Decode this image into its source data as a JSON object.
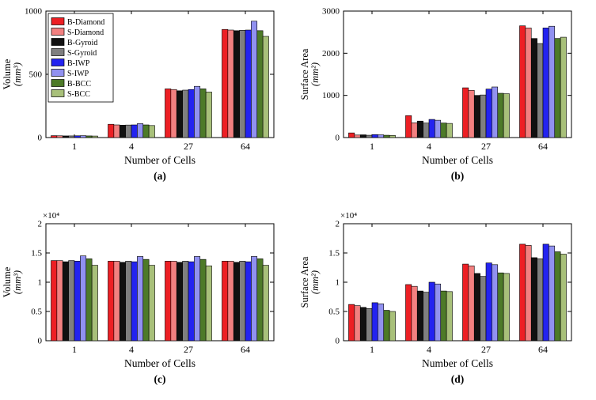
{
  "figure": {
    "description_labels": [
      "(a)",
      "(b)",
      "(c)",
      "(d)"
    ]
  },
  "legend": {
    "entries": [
      {
        "label": "B-Diamond",
        "color": "#ed1f24"
      },
      {
        "label": "S-Diamond",
        "color": "#f28080"
      },
      {
        "label": "B-Gyroid",
        "color": "#111111"
      },
      {
        "label": "S-Gyroid",
        "color": "#7f7f7f"
      },
      {
        "label": "B-IWP",
        "color": "#2323f0"
      },
      {
        "label": "S-IWP",
        "color": "#9191f0"
      },
      {
        "label": "B-BCC",
        "color": "#4d7a28"
      },
      {
        "label": "S-BCC",
        "color": "#a8c07a"
      }
    ]
  },
  "chart_data": [
    {
      "type": "bar",
      "caption": "(a)",
      "ylabel": [
        "Volume",
        "(mm³)"
      ],
      "xlabel": "Number of Cells",
      "categories": [
        "1",
        "4",
        "27",
        "64"
      ],
      "ymax": 1000,
      "yticks": [
        0,
        500,
        1000
      ],
      "ytick_labels": [
        "0",
        "500",
        "1000"
      ],
      "multiplier": "",
      "show_legend": true,
      "series": [
        {
          "name": "B-Diamond",
          "values": [
            15,
            105,
            385,
            855
          ]
        },
        {
          "name": "S-Diamond",
          "values": [
            14,
            100,
            380,
            850
          ]
        },
        {
          "name": "B-Gyroid",
          "values": [
            13,
            98,
            370,
            845
          ]
        },
        {
          "name": "S-Gyroid",
          "values": [
            13,
            99,
            375,
            848
          ]
        },
        {
          "name": "B-IWP",
          "values": [
            14,
            100,
            380,
            850
          ]
        },
        {
          "name": "S-IWP",
          "values": [
            15,
            110,
            405,
            920
          ]
        },
        {
          "name": "B-BCC",
          "values": [
            13,
            100,
            385,
            845
          ]
        },
        {
          "name": "S-BCC",
          "values": [
            12,
            95,
            360,
            800
          ]
        }
      ]
    },
    {
      "type": "bar",
      "caption": "(b)",
      "ylabel": [
        "Surface Area",
        "(mm²)"
      ],
      "xlabel": "Number of Cells",
      "categories": [
        "1",
        "4",
        "27",
        "64"
      ],
      "ymax": 3000,
      "yticks": [
        0,
        1000,
        2000,
        3000
      ],
      "ytick_labels": [
        "0",
        "1000",
        "2000",
        "3000"
      ],
      "multiplier": "",
      "show_legend": false,
      "series": [
        {
          "name": "B-Diamond",
          "values": [
            110,
            520,
            1180,
            2650
          ]
        },
        {
          "name": "S-Diamond",
          "values": [
            60,
            350,
            1120,
            2600
          ]
        },
        {
          "name": "B-Gyroid",
          "values": [
            65,
            390,
            1000,
            2350
          ]
        },
        {
          "name": "S-Gyroid",
          "values": [
            55,
            345,
            1010,
            2230
          ]
        },
        {
          "name": "B-IWP",
          "values": [
            70,
            430,
            1150,
            2600
          ]
        },
        {
          "name": "S-IWP",
          "values": [
            65,
            410,
            1200,
            2640
          ]
        },
        {
          "name": "B-BCC",
          "values": [
            55,
            345,
            1050,
            2350
          ]
        },
        {
          "name": "S-BCC",
          "values": [
            50,
            335,
            1040,
            2380
          ]
        }
      ]
    },
    {
      "type": "bar",
      "caption": "(c)",
      "ylabel": [
        "Volume",
        "(mm³)"
      ],
      "xlabel": "Number of Cells",
      "categories": [
        "1",
        "4",
        "27",
        "64"
      ],
      "ymax": 2,
      "yticks": [
        0,
        0.5,
        1,
        1.5,
        2
      ],
      "ytick_labels": [
        "0",
        "0.5",
        "1",
        "1.5",
        "2"
      ],
      "multiplier": "×10⁴",
      "show_legend": false,
      "series": [
        {
          "name": "B-Diamond",
          "values": [
            1.37,
            1.36,
            1.36,
            1.36
          ]
        },
        {
          "name": "S-Diamond",
          "values": [
            1.37,
            1.36,
            1.36,
            1.36
          ]
        },
        {
          "name": "B-Gyroid",
          "values": [
            1.35,
            1.34,
            1.34,
            1.34
          ]
        },
        {
          "name": "S-Gyroid",
          "values": [
            1.37,
            1.36,
            1.36,
            1.36
          ]
        },
        {
          "name": "B-IWP",
          "values": [
            1.36,
            1.35,
            1.35,
            1.35
          ]
        },
        {
          "name": "S-IWP",
          "values": [
            1.45,
            1.44,
            1.44,
            1.44
          ]
        },
        {
          "name": "B-BCC",
          "values": [
            1.4,
            1.39,
            1.39,
            1.4
          ]
        },
        {
          "name": "S-BCC",
          "values": [
            1.29,
            1.29,
            1.28,
            1.29
          ]
        }
      ]
    },
    {
      "type": "bar",
      "caption": "(d)",
      "ylabel": [
        "Surface Area",
        "(mm²)"
      ],
      "xlabel": "Number of Cells",
      "categories": [
        "1",
        "4",
        "27",
        "64"
      ],
      "ymax": 2,
      "yticks": [
        0,
        0.5,
        1,
        1.5,
        2
      ],
      "ytick_labels": [
        "0",
        "0.5",
        "1",
        "1.5",
        "2"
      ],
      "multiplier": "×10⁴",
      "show_legend": false,
      "series": [
        {
          "name": "B-Diamond",
          "values": [
            0.62,
            0.96,
            1.31,
            1.65
          ]
        },
        {
          "name": "S-Diamond",
          "values": [
            0.6,
            0.93,
            1.28,
            1.63
          ]
        },
        {
          "name": "B-Gyroid",
          "values": [
            0.57,
            0.85,
            1.15,
            1.42
          ]
        },
        {
          "name": "S-Gyroid",
          "values": [
            0.55,
            0.83,
            1.1,
            1.4
          ]
        },
        {
          "name": "B-IWP",
          "values": [
            0.65,
            1.0,
            1.33,
            1.65
          ]
        },
        {
          "name": "S-IWP",
          "values": [
            0.63,
            0.97,
            1.3,
            1.62
          ]
        },
        {
          "name": "B-BCC",
          "values": [
            0.52,
            0.85,
            1.16,
            1.52
          ]
        },
        {
          "name": "S-BCC",
          "values": [
            0.5,
            0.84,
            1.15,
            1.48
          ]
        }
      ]
    }
  ]
}
